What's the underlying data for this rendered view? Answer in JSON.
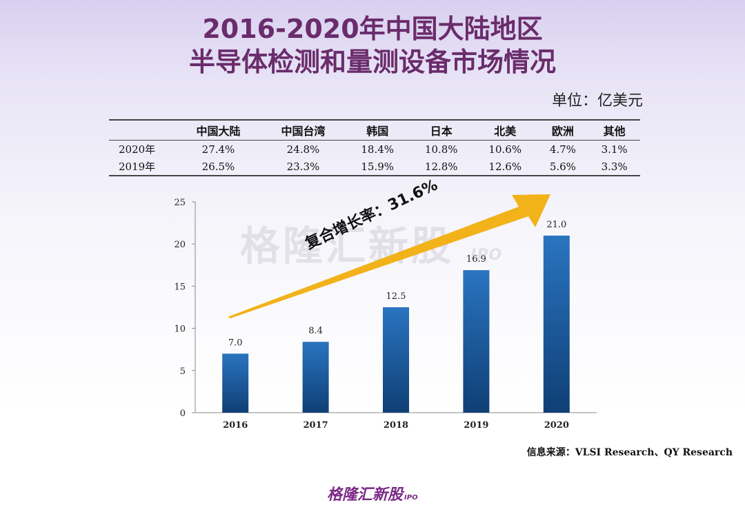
{
  "title_line1": "2016-2020年中国大陆地区",
  "title_line2": "半导体检测和量测设备市场情况",
  "unit": "单位：亿美元",
  "table": {
    "headers": [
      "",
      "中国大陆",
      "中国台湾",
      "韩国",
      "日本",
      "北美",
      "欧洲",
      "其他"
    ],
    "rows": [
      {
        "label": "2020年",
        "values": [
          "27.4%",
          "24.8%",
          "18.4%",
          "10.8%",
          "10.6%",
          "4.7%",
          "3.1%"
        ]
      },
      {
        "label": "2019年",
        "values": [
          "26.5%",
          "23.3%",
          "15.9%",
          "12.8%",
          "12.6%",
          "5.6%",
          "3.3%"
        ]
      }
    ]
  },
  "chart_data": {
    "type": "bar",
    "categories": [
      "2016",
      "2017",
      "2018",
      "2019",
      "2020"
    ],
    "values": [
      7.0,
      8.4,
      12.5,
      16.9,
      21.0
    ],
    "data_labels": [
      "7.0",
      "8.4",
      "12.5",
      "16.9",
      "21.0"
    ],
    "ylim": [
      0,
      25
    ],
    "yticks": [
      0,
      5,
      10,
      15,
      20,
      25
    ],
    "annotation": "复合增长率：31.6%",
    "bar_color": "#1f63a8",
    "arrow_color": "#f2b21a"
  },
  "watermark": {
    "text": "格隆汇新股",
    "suffix": "IPO"
  },
  "source": "信息来源：VLSI Research、QY Research",
  "logo": {
    "text": "格隆汇新股",
    "suffix": "IPO"
  }
}
